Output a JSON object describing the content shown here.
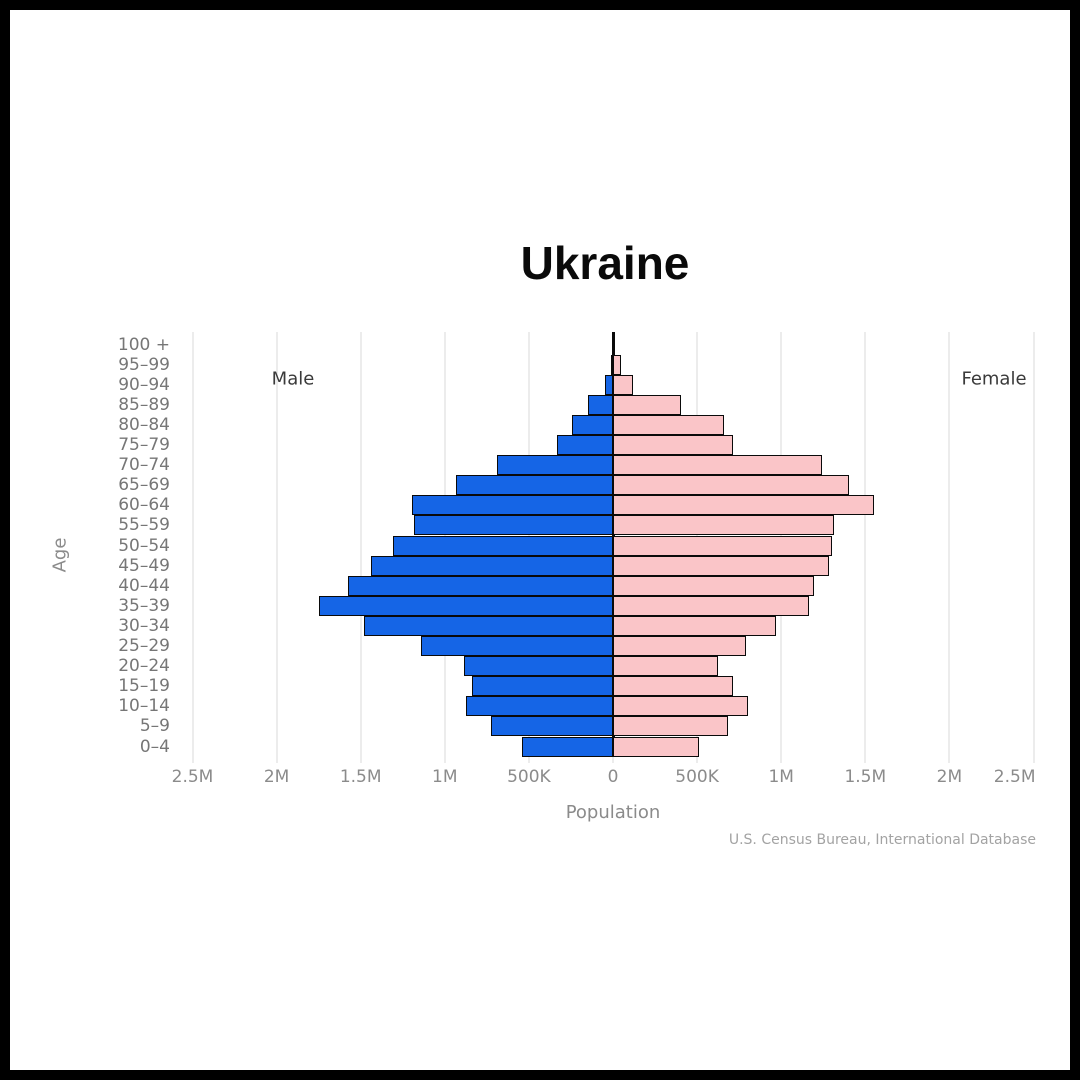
{
  "page": {
    "background": "#FFFFFF",
    "frame_color": "#000000"
  },
  "chart_data": {
    "type": "bar",
    "subtype": "population_pyramid",
    "title": "Ukraine",
    "xlabel": "Population",
    "ylabel": "Age",
    "source": "U.S. Census Bureau, International Database",
    "left_series_label": "Male",
    "right_series_label": "Female",
    "x_tick_labels": [
      "2.5M",
      "2M",
      "1.5M",
      "1M",
      "500K",
      "0",
      "500K",
      "1M",
      "1.5M",
      "2M",
      "2.5M"
    ],
    "x_tick_step": 500000,
    "x_max_each_side": 2500000,
    "grid": true,
    "categories_top_to_bottom": [
      "100 +",
      "95–99",
      "90–94",
      "85–89",
      "80–84",
      "75–79",
      "70–74",
      "65–69",
      "60–64",
      "55–59",
      "50–54",
      "45–49",
      "40–44",
      "35–39",
      "30–34",
      "25–29",
      "20–24",
      "15–19",
      "10–14",
      "5–9",
      "0–4"
    ],
    "series": [
      {
        "name": "Male",
        "side": "left",
        "color": "#1565E6",
        "values": [
          2000,
          10000,
          48000,
          150000,
          245000,
          335000,
          690000,
          935000,
          1195000,
          1185000,
          1310000,
          1440000,
          1575000,
          1750000,
          1480000,
          1140000,
          885000,
          840000,
          875000,
          725000,
          540000
        ]
      },
      {
        "name": "Female",
        "side": "right",
        "color": "#FAC5C8",
        "values": [
          5000,
          45000,
          120000,
          405000,
          660000,
          715000,
          1245000,
          1405000,
          1550000,
          1315000,
          1300000,
          1285000,
          1195000,
          1165000,
          970000,
          790000,
          625000,
          715000,
          805000,
          685000,
          510000
        ]
      }
    ]
  },
  "colors": {
    "male_bar": "#1565E6",
    "female_bar": "#FAC5C8",
    "bar_outline": "#0A0A0A",
    "gridline": "#ECECEC",
    "tick_text": "#8B8B8B",
    "side_label_text": "#3A3A3A",
    "age_text": "#767676",
    "source_text": "#A3A3A3"
  }
}
